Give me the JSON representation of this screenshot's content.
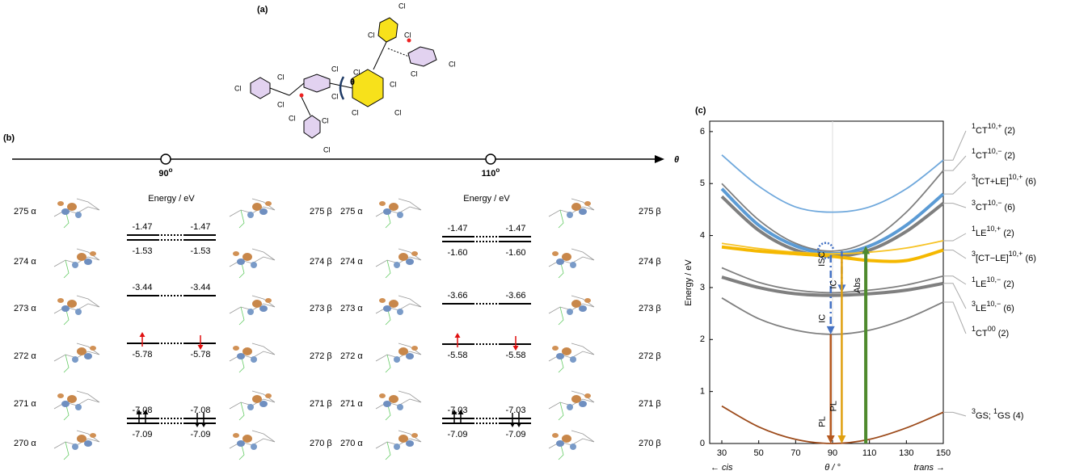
{
  "panel_a": {
    "label": "(a)",
    "angle": "θ",
    "atom_label": "Cl"
  },
  "panel_b": {
    "label": "(b)",
    "axis_label": "θ",
    "points": [
      {
        "value": "90",
        "unit": "o"
      },
      {
        "value": "110",
        "unit": "o"
      }
    ],
    "columns": [
      {
        "energy_title": "Energy / eV",
        "orbitals_alpha": [
          "275 α",
          "274 α",
          "273 α",
          "272 α",
          "271 α",
          "270 α"
        ],
        "orbitals_beta": [
          "275 β",
          "274 β",
          "273 β",
          "272 β",
          "271 β",
          "270 β"
        ],
        "levels": [
          {
            "upper": [
              "-1.47",
              "-1.47"
            ],
            "lower": [
              "-1.53",
              "-1.53"
            ]
          },
          {
            "upper": [
              "-3.44",
              "-3.44"
            ]
          },
          {
            "lower": [
              "-5.78",
              "-5.78"
            ],
            "electrons": "unpaired"
          },
          {
            "upper": [
              "-7.08",
              "-7.08"
            ],
            "lower": [
              "-7.09",
              "-7.09"
            ],
            "electrons": "paired"
          }
        ]
      },
      {
        "energy_title": "Energy / eV",
        "orbitals_alpha": [
          "275 α",
          "274 α",
          "273 α",
          "272 α",
          "271 α",
          "270 α"
        ],
        "orbitals_beta": [
          "275 β",
          "274 β",
          "273 β",
          "272 β",
          "271 β",
          "270 β"
        ],
        "levels": [
          {
            "upper": [
              "-1.47",
              "-1.47"
            ],
            "lower": [
              "-1.60",
              "-1.60"
            ]
          },
          {
            "upper": [
              "-3.66",
              "-3.66"
            ]
          },
          {
            "lower": [
              "-5.58",
              "-5.58"
            ],
            "electrons": "unpaired"
          },
          {
            "upper": [
              "-7.03",
              "-7.03"
            ],
            "lower": [
              "-7.09",
              "-7.09"
            ],
            "electrons": "paired"
          }
        ]
      }
    ]
  },
  "chart_data": {
    "type": "line",
    "label": "(c)",
    "xlabel": "θ / °",
    "ylabel": "Energy / eV",
    "x_left_note": "← cis",
    "x_right_note": "trans →",
    "x": [
      30,
      50,
      70,
      90,
      110,
      130,
      150
    ],
    "xlim": [
      30,
      150
    ],
    "ylim": [
      0,
      6.2
    ],
    "xticks": [
      30,
      50,
      70,
      90,
      110,
      130,
      150
    ],
    "yticks": [
      0,
      1,
      2,
      3,
      4,
      5,
      6
    ],
    "guide_x": 90,
    "series": [
      {
        "label": [
          {
            "sup": "1"
          },
          {
            "text": "CT"
          },
          {
            "sup": "10,+"
          },
          {
            "text": " (2)"
          }
        ],
        "color": "#6fa8dc",
        "weight": "thin",
        "values": [
          5.55,
          4.95,
          4.55,
          4.45,
          4.55,
          4.9,
          5.45
        ]
      },
      {
        "label": [
          {
            "sup": "1"
          },
          {
            "text": "CT"
          },
          {
            "sup": "10,−"
          },
          {
            "text": " (2)"
          }
        ],
        "color": "#7f7f7f",
        "weight": "thin",
        "values": [
          5.0,
          4.3,
          3.85,
          3.7,
          3.9,
          4.45,
          5.25
        ]
      },
      {
        "label": [
          {
            "sup": "3"
          },
          {
            "text": "[CT+LE]"
          },
          {
            "sup": "10,+"
          },
          {
            "text": " (6)"
          }
        ],
        "color": "#5b9bd5",
        "weight": "thick",
        "values": [
          4.9,
          4.2,
          3.8,
          3.65,
          3.8,
          4.2,
          4.8
        ]
      },
      {
        "label": [
          {
            "sup": "3"
          },
          {
            "text": "CT"
          },
          {
            "sup": "10,−"
          },
          {
            "text": " (6)"
          }
        ],
        "color": "#7f7f7f",
        "weight": "thick",
        "values": [
          4.75,
          4.1,
          3.72,
          3.6,
          3.72,
          4.08,
          4.62
        ]
      },
      {
        "label": [
          {
            "sup": "1"
          },
          {
            "text": "LE"
          },
          {
            "sup": "10,+"
          },
          {
            "text": " (2)"
          }
        ],
        "color": "#f7c325",
        "weight": "thin",
        "values": [
          3.85,
          3.75,
          3.68,
          3.65,
          3.68,
          3.76,
          3.9
        ]
      },
      {
        "label": [
          {
            "sup": "3"
          },
          {
            "text": "[CT−LE]"
          },
          {
            "sup": "10,+"
          },
          {
            "text": " (6)"
          }
        ],
        "color": "#f5b800",
        "weight": "thick",
        "values": [
          3.78,
          3.7,
          3.65,
          3.6,
          3.52,
          3.52,
          3.72
        ]
      },
      {
        "label": [
          {
            "sup": "1"
          },
          {
            "text": "LE"
          },
          {
            "sup": "10,−"
          },
          {
            "text": " (2)"
          }
        ],
        "color": "#7f7f7f",
        "weight": "thin",
        "values": [
          3.38,
          3.1,
          2.95,
          2.9,
          2.95,
          3.05,
          3.22
        ]
      },
      {
        "label": [
          {
            "sup": "3"
          },
          {
            "text": "LE"
          },
          {
            "sup": "10,−"
          },
          {
            "text": " (6)"
          }
        ],
        "color": "#7f7f7f",
        "weight": "thick",
        "values": [
          3.2,
          3.0,
          2.88,
          2.85,
          2.88,
          2.95,
          3.08
        ]
      },
      {
        "label": [
          {
            "sup": "1"
          },
          {
            "text": "CT"
          },
          {
            "sup": "00"
          },
          {
            "text": " (2)"
          }
        ],
        "color": "#7f7f7f",
        "weight": "thin",
        "values": [
          2.8,
          2.4,
          2.18,
          2.1,
          2.18,
          2.4,
          2.72
        ]
      },
      {
        "label": [
          {
            "sup": "3"
          },
          {
            "text": "GS; "
          },
          {
            "sup": "1"
          },
          {
            "text": "GS (4)"
          }
        ],
        "color": "#9c4a1a",
        "weight": "thin",
        "values": [
          0.72,
          0.32,
          0.08,
          0,
          0.08,
          0.3,
          0.6
        ]
      }
    ],
    "arrows": [
      {
        "label": "ISC",
        "color": "#4472c4",
        "x": 86,
        "from": 3.62,
        "to": 3.85,
        "style": "dotted"
      },
      {
        "label": "IC",
        "color": "#4472c4",
        "x": 89,
        "from": 3.62,
        "to": 2.1,
        "style": "dashdot"
      },
      {
        "label": "IC",
        "color": "#4472c4",
        "x": 95,
        "from": 3.7,
        "to": 2.9,
        "style": "dashdot"
      },
      {
        "label": "PL",
        "color": "#b5581f",
        "x": 89,
        "from": 2.1,
        "to": 0,
        "style": "solid"
      },
      {
        "label": "PL",
        "color": "#e0a010",
        "x": 95,
        "from": 3.6,
        "to": 0,
        "style": "solid"
      },
      {
        "label": "Abs",
        "color": "#4f8a2e",
        "x": 108,
        "from": 0,
        "to": 3.8,
        "style": "solid"
      }
    ]
  }
}
